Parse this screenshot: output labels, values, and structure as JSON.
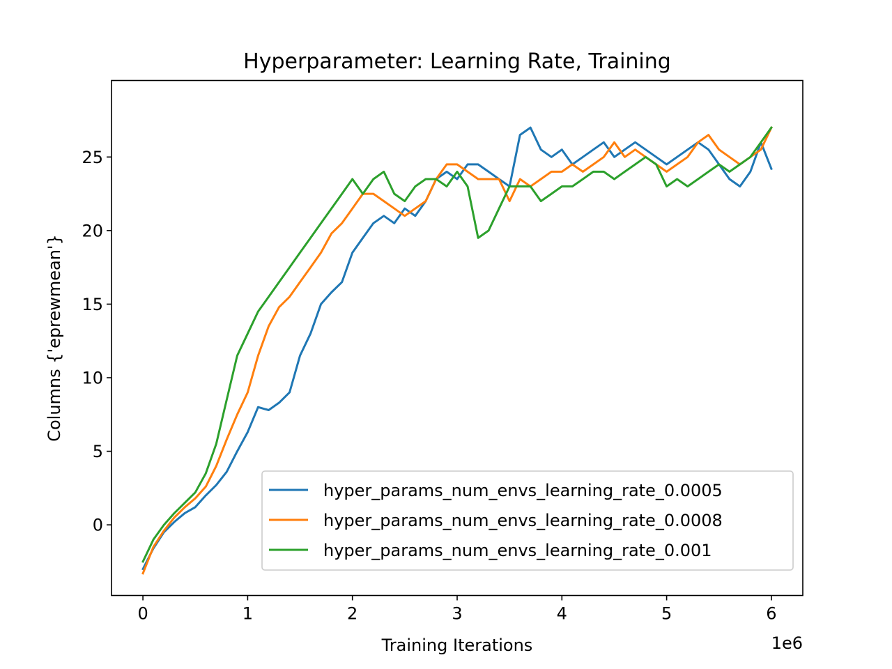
{
  "chart_data": {
    "type": "line",
    "title": "Hyperparameter: Learning Rate, Training",
    "xlabel": "Training Iterations",
    "ylabel": "Columns {'eprewmean'}",
    "x_offset_label": "1e6",
    "xlim": [
      -0.3,
      6.3
    ],
    "ylim": [
      -4.8,
      30.2
    ],
    "x_ticks": [
      0,
      1,
      2,
      3,
      4,
      5,
      6
    ],
    "x_tick_labels": [
      "0",
      "1",
      "2",
      "3",
      "4",
      "5",
      "6"
    ],
    "y_ticks": [
      0,
      5,
      10,
      15,
      20,
      25
    ],
    "y_tick_labels": [
      "0",
      "5",
      "10",
      "15",
      "20",
      "25"
    ],
    "grid": false,
    "legend_position": "lower-right",
    "x": [
      0,
      0.1,
      0.2,
      0.3,
      0.4,
      0.5,
      0.6,
      0.7,
      0.8,
      0.9,
      1.0,
      1.1,
      1.2,
      1.3,
      1.4,
      1.5,
      1.6,
      1.7,
      1.8,
      1.9,
      2.0,
      2.1,
      2.2,
      2.3,
      2.4,
      2.5,
      2.6,
      2.7,
      2.8,
      2.9,
      3.0,
      3.1,
      3.2,
      3.3,
      3.4,
      3.5,
      3.6,
      3.7,
      3.8,
      3.9,
      4.0,
      4.1,
      4.2,
      4.3,
      4.4,
      4.5,
      4.6,
      4.7,
      4.8,
      4.9,
      5.0,
      5.1,
      5.2,
      5.3,
      5.4,
      5.5,
      5.6,
      5.7,
      5.8,
      5.9,
      6.0
    ],
    "series": [
      {
        "name": "hyper_params_num_envs_learning_rate_0.0005",
        "color": "#1f77b4",
        "values": [
          -3.0,
          -1.6,
          -0.5,
          0.2,
          0.8,
          1.2,
          2.0,
          2.7,
          3.6,
          5.0,
          6.3,
          8.0,
          7.8,
          8.3,
          9.0,
          11.5,
          13.0,
          15.0,
          15.8,
          16.5,
          18.5,
          19.5,
          20.5,
          21.0,
          20.5,
          21.5,
          21.0,
          22.0,
          23.5,
          24.0,
          23.5,
          24.5,
          24.5,
          24.0,
          23.5,
          23.0,
          26.5,
          27.0,
          25.5,
          25.0,
          25.5,
          24.5,
          25.0,
          25.5,
          26.0,
          25.0,
          25.5,
          26.0,
          25.5,
          25.0,
          24.5,
          25.0,
          25.5,
          26.0,
          25.5,
          24.5,
          23.5,
          23.0,
          24.0,
          26.0,
          24.2
        ]
      },
      {
        "name": "hyper_params_num_envs_learning_rate_0.0008",
        "color": "#ff7f0e",
        "values": [
          -3.3,
          -1.5,
          -0.4,
          0.5,
          1.2,
          1.8,
          2.6,
          4.0,
          5.8,
          7.5,
          9.0,
          11.5,
          13.5,
          14.8,
          15.5,
          16.5,
          17.5,
          18.5,
          19.8,
          20.5,
          21.5,
          22.5,
          22.5,
          22.0,
          21.5,
          21.0,
          21.5,
          22.0,
          23.5,
          24.5,
          24.5,
          24.0,
          23.5,
          23.5,
          23.5,
          22.0,
          23.5,
          23.0,
          23.5,
          24.0,
          24.0,
          24.5,
          24.0,
          24.5,
          25.0,
          26.0,
          25.0,
          25.5,
          25.0,
          24.5,
          24.0,
          24.5,
          25.0,
          26.0,
          26.5,
          25.5,
          25.0,
          24.5,
          25.0,
          25.5,
          27.0
        ]
      },
      {
        "name": "hyper_params_num_envs_learning_rate_0.001",
        "color": "#2ca02c",
        "values": [
          -2.5,
          -1.0,
          0.0,
          0.8,
          1.5,
          2.2,
          3.5,
          5.5,
          8.5,
          11.5,
          13.0,
          14.5,
          15.5,
          16.5,
          17.5,
          18.5,
          19.5,
          20.5,
          21.5,
          22.5,
          23.5,
          22.5,
          23.5,
          24.0,
          22.5,
          22.0,
          23.0,
          23.5,
          23.5,
          23.0,
          24.0,
          23.0,
          19.5,
          20.0,
          21.5,
          23.0,
          23.0,
          23.0,
          22.0,
          22.5,
          23.0,
          23.0,
          23.5,
          24.0,
          24.0,
          23.5,
          24.0,
          24.5,
          25.0,
          24.5,
          23.0,
          23.5,
          23.0,
          23.5,
          24.0,
          24.5,
          24.0,
          24.5,
          25.0,
          26.0,
          27.0
        ]
      }
    ]
  }
}
